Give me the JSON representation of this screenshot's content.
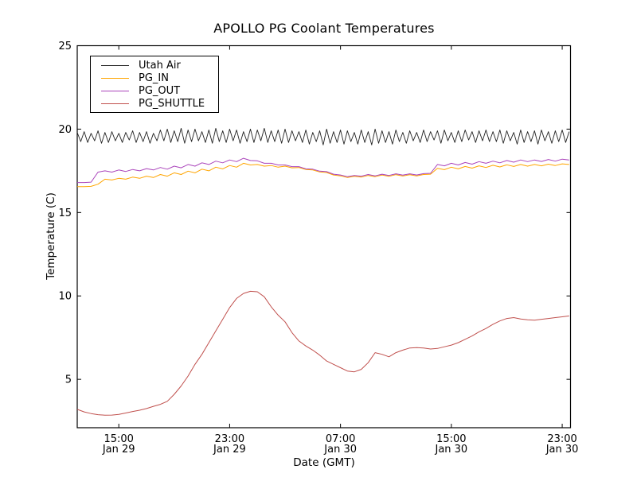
{
  "chart_data": {
    "type": "line",
    "title": "APOLLO PG Coolant Temperatures",
    "xlabel": "Date (GMT)",
    "ylabel": "Temperature (C)",
    "x_unit": "hours since Jan 29 12:00 GMT",
    "xlim_hours": [
      0,
      35.6
    ],
    "ylim": [
      2.1,
      25
    ],
    "grid": false,
    "legend_position": "upper-left",
    "x_ticks": [
      {
        "hours": 3,
        "time": "15:00",
        "date": "Jan 29"
      },
      {
        "hours": 11,
        "time": "23:00",
        "date": "Jan 29"
      },
      {
        "hours": 19,
        "time": "07:00",
        "date": "Jan 30"
      },
      {
        "hours": 27,
        "time": "15:00",
        "date": "Jan 30"
      },
      {
        "hours": 35,
        "time": "23:00",
        "date": "Jan 30"
      }
    ],
    "y_ticks": [
      {
        "value": 25,
        "label": "25"
      },
      {
        "value": 20,
        "label": "20"
      },
      {
        "value": 15,
        "label": "15"
      },
      {
        "value": 10,
        "label": "10"
      },
      {
        "value": 5,
        "label": "5"
      }
    ],
    "series": [
      {
        "name": "Utah Air",
        "color": "#222222",
        "t0": 0,
        "dt": 0.25,
        "values": [
          19.8,
          19.25,
          19.85,
          19.2,
          19.75,
          19.3,
          19.9,
          19.15,
          19.8,
          19.2,
          19.85,
          19.3,
          19.75,
          19.2,
          19.8,
          19.35,
          19.9,
          19.2,
          19.8,
          19.25,
          19.85,
          19.15,
          19.75,
          19.3,
          19.95,
          19.3,
          20.0,
          19.2,
          19.9,
          19.25,
          20.05,
          19.15,
          19.95,
          19.25,
          20.0,
          19.3,
          19.85,
          19.2,
          19.95,
          19.15,
          20.05,
          19.25,
          19.9,
          19.2,
          20.0,
          19.3,
          19.95,
          19.15,
          19.85,
          19.25,
          20.0,
          19.2,
          19.95,
          19.3,
          20.05,
          19.2,
          19.9,
          19.25,
          19.95,
          19.15,
          20.0,
          19.2,
          19.9,
          19.3,
          19.85,
          19.2,
          19.95,
          19.1,
          19.8,
          19.25,
          19.9,
          19.05,
          20.0,
          19.15,
          19.85,
          19.2,
          19.95,
          19.1,
          19.9,
          19.25,
          19.8,
          19.1,
          19.95,
          19.2,
          19.85,
          19.05,
          20.0,
          19.15,
          19.9,
          19.2,
          19.85,
          19.1,
          19.95,
          19.25,
          19.8,
          19.15,
          19.9,
          19.3,
          19.8,
          19.2,
          19.95,
          19.25,
          19.85,
          19.35,
          19.9,
          19.15,
          19.95,
          19.3,
          19.8,
          19.2,
          19.9,
          19.25,
          19.95,
          19.35,
          19.85,
          19.2,
          19.9,
          19.3,
          19.95,
          19.25,
          19.85,
          19.25,
          19.95,
          19.15,
          19.9,
          19.3,
          19.8,
          19.1,
          19.95,
          19.2,
          19.85,
          19.25,
          19.9,
          19.1,
          19.95,
          19.3,
          19.85,
          19.15,
          19.9,
          19.25,
          19.95,
          19.2,
          19.85
        ]
      },
      {
        "name": "PG_IN",
        "color": "#ffa500",
        "t0": 0,
        "dt": 0.5,
        "values": [
          16.55,
          16.55,
          16.57,
          16.7,
          17.0,
          16.95,
          17.05,
          17.0,
          17.12,
          17.05,
          17.18,
          17.1,
          17.28,
          17.18,
          17.38,
          17.28,
          17.48,
          17.38,
          17.6,
          17.5,
          17.72,
          17.62,
          17.82,
          17.72,
          17.95,
          17.85,
          17.88,
          17.78,
          17.82,
          17.72,
          17.78,
          17.68,
          17.7,
          17.58,
          17.55,
          17.43,
          17.4,
          17.25,
          17.2,
          17.1,
          17.17,
          17.12,
          17.22,
          17.15,
          17.25,
          17.17,
          17.27,
          17.19,
          17.27,
          17.2,
          17.28,
          17.3,
          17.65,
          17.57,
          17.72,
          17.62,
          17.76,
          17.66,
          17.8,
          17.7,
          17.83,
          17.73,
          17.86,
          17.76,
          17.88,
          17.78,
          17.88,
          17.8,
          17.9,
          17.82,
          17.92,
          17.88
        ]
      },
      {
        "name": "PG_OUT",
        "color": "#aa44bb",
        "t0": 0,
        "dt": 0.5,
        "values": [
          16.8,
          16.8,
          16.82,
          17.42,
          17.5,
          17.42,
          17.55,
          17.46,
          17.58,
          17.5,
          17.63,
          17.55,
          17.7,
          17.6,
          17.78,
          17.68,
          17.88,
          17.78,
          17.98,
          17.88,
          18.08,
          17.98,
          18.15,
          18.05,
          18.25,
          18.12,
          18.1,
          17.95,
          17.95,
          17.85,
          17.85,
          17.75,
          17.75,
          17.62,
          17.6,
          17.48,
          17.45,
          17.3,
          17.25,
          17.15,
          17.22,
          17.18,
          17.28,
          17.2,
          17.3,
          17.22,
          17.32,
          17.24,
          17.32,
          17.25,
          17.33,
          17.35,
          17.88,
          17.8,
          17.95,
          17.85,
          18.0,
          17.9,
          18.05,
          17.95,
          18.08,
          17.98,
          18.12,
          18.02,
          18.15,
          18.05,
          18.15,
          18.06,
          18.18,
          18.08,
          18.2,
          18.15
        ]
      },
      {
        "name": "PG_SHUTTLE",
        "color": "#c0504d",
        "t0": 0,
        "dt": 0.5,
        "values": [
          3.2,
          3.05,
          2.95,
          2.88,
          2.85,
          2.86,
          2.9,
          2.98,
          3.07,
          3.15,
          3.25,
          3.38,
          3.5,
          3.68,
          4.1,
          4.6,
          5.2,
          5.9,
          6.5,
          7.2,
          7.9,
          8.6,
          9.3,
          9.85,
          10.15,
          10.28,
          10.25,
          9.95,
          9.35,
          8.85,
          8.45,
          7.8,
          7.3,
          7.0,
          6.75,
          6.45,
          6.1,
          5.9,
          5.7,
          5.5,
          5.45,
          5.6,
          6.0,
          6.6,
          6.5,
          6.35,
          6.6,
          6.75,
          6.88,
          6.9,
          6.88,
          6.82,
          6.85,
          6.95,
          7.05,
          7.2,
          7.4,
          7.6,
          7.85,
          8.05,
          8.3,
          8.5,
          8.65,
          8.7,
          8.62,
          8.57,
          8.55,
          8.6,
          8.65,
          8.7,
          8.75,
          8.8
        ]
      }
    ]
  }
}
